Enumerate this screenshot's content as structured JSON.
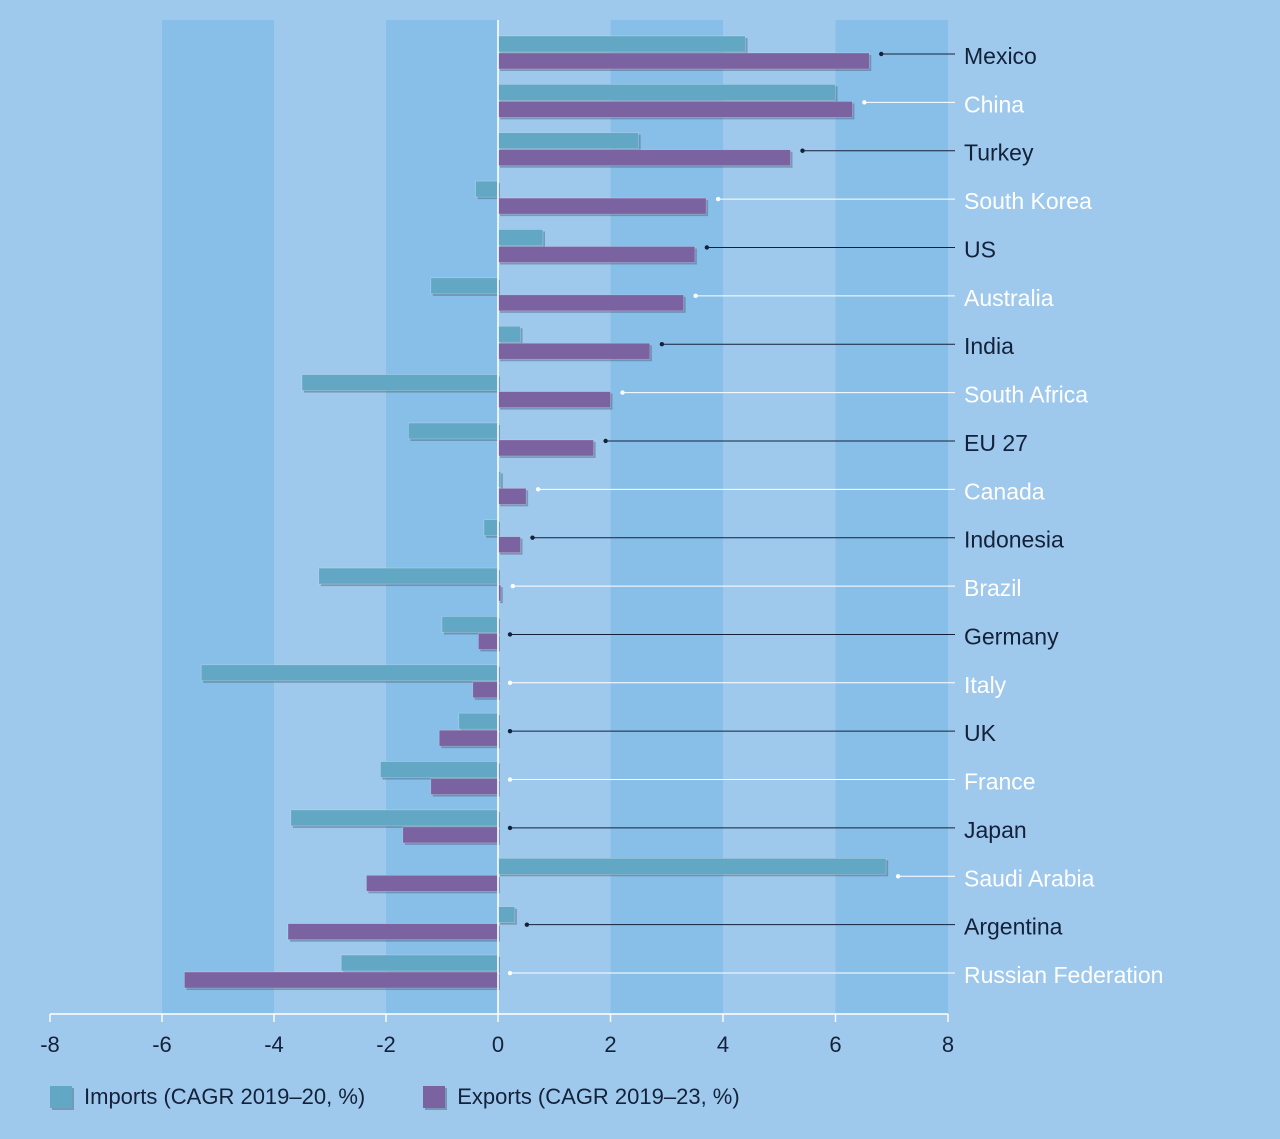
{
  "chart_data": {
    "type": "bar",
    "orientation": "horizontal",
    "title": "",
    "xlabel": "",
    "ylabel": "",
    "xlim": [
      -8,
      8
    ],
    "x_ticks": [
      -8,
      -6,
      -4,
      -2,
      0,
      2,
      4,
      6,
      8
    ],
    "legend_position": "bottom",
    "categories": [
      "Mexico",
      "China",
      "Turkey",
      "South Korea",
      "US",
      "Australia",
      "India",
      "South Africa",
      "EU 27",
      "Canada",
      "Indonesia",
      "Brazil",
      "Germany",
      "Italy",
      "UK",
      "France",
      "Japan",
      "Saudi Arabia",
      "Argentina",
      "Russian Federation"
    ],
    "series": [
      {
        "name": "Imports (CAGR 2019–20, %)",
        "color": "#62a8c4",
        "values": [
          4.4,
          6.0,
          2.5,
          -0.4,
          0.8,
          -1.2,
          0.4,
          -3.5,
          -1.6,
          0.05,
          -0.25,
          -3.2,
          -1.0,
          -5.3,
          -0.7,
          -2.1,
          -3.7,
          6.9,
          0.3,
          -2.8
        ]
      },
      {
        "name": "Exports (CAGR 2019–23, %)",
        "color": "#7b62a1",
        "values": [
          6.6,
          6.3,
          5.2,
          3.7,
          3.5,
          3.3,
          2.7,
          2.0,
          1.7,
          0.5,
          0.4,
          0.05,
          -0.35,
          -0.45,
          -1.05,
          -1.2,
          -1.7,
          -2.35,
          -3.75,
          -5.6
        ]
      }
    ],
    "label_colors": [
      "#14213a",
      "#ffffff"
    ]
  }
}
